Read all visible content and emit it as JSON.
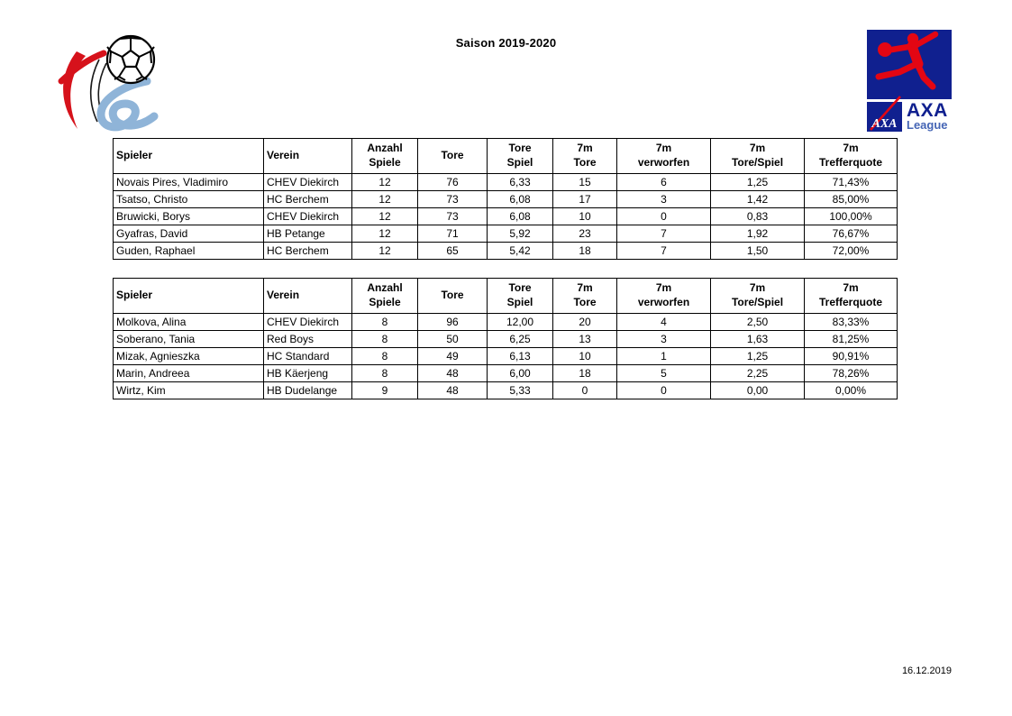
{
  "page": {
    "title": "Saison 2019-2020",
    "footer_date": "16.12.2019",
    "background": "#ffffff"
  },
  "logos": {
    "flh": {
      "name": "flh-handball-federation-logo",
      "colors": {
        "red": "#D6121B",
        "blue": "#8FB4D8",
        "ball_outline": "#000000"
      }
    },
    "axa": {
      "square_text": "AXA",
      "wordmark": "AXA",
      "subtitle": "League",
      "colors": {
        "navy": "#10208F",
        "red": "#E30613",
        "league_blue": "#4565B5"
      }
    }
  },
  "tables": [
    {
      "name": "top-scorers-men",
      "headers": [
        "Spieler",
        "Verein",
        "Anzahl\nSpiele",
        "Tore",
        "Tore\nSpiel",
        "7m\nTore",
        "7m\nverworfen",
        "7m\nTore/Spiel",
        "7m\nTrefferquote"
      ],
      "rows": [
        [
          "Novais Pires, Vladimiro",
          "CHEV Diekirch",
          "12",
          "76",
          "6,33",
          "15",
          "6",
          "1,25",
          "71,43%"
        ],
        [
          "Tsatso, Christo",
          "HC Berchem",
          "12",
          "73",
          "6,08",
          "17",
          "3",
          "1,42",
          "85,00%"
        ],
        [
          "Bruwicki, Borys",
          "CHEV Diekirch",
          "12",
          "73",
          "6,08",
          "10",
          "0",
          "0,83",
          "100,00%"
        ],
        [
          "Gyafras, David",
          "HB Petange",
          "12",
          "71",
          "5,92",
          "23",
          "7",
          "1,92",
          "76,67%"
        ],
        [
          "Guden, Raphael",
          "HC Berchem",
          "12",
          "65",
          "5,42",
          "18",
          "7",
          "1,50",
          "72,00%"
        ]
      ]
    },
    {
      "name": "top-scorers-women",
      "headers": [
        "Spieler",
        "Verein",
        "Anzahl\nSpiele",
        "Tore",
        "Tore\nSpiel",
        "7m\nTore",
        "7m\nverworfen",
        "7m\nTore/Spiel",
        "7m\nTrefferquote"
      ],
      "rows": [
        [
          "Molkova, Alina",
          "CHEV Diekirch",
          "8",
          "96",
          "12,00",
          "20",
          "4",
          "2,50",
          "83,33%"
        ],
        [
          "Soberano, Tania",
          "Red Boys",
          "8",
          "50",
          "6,25",
          "13",
          "3",
          "1,63",
          "81,25%"
        ],
        [
          "Mizak, Agnieszka",
          "HC Standard",
          "8",
          "49",
          "6,13",
          "10",
          "1",
          "1,25",
          "90,91%"
        ],
        [
          "Marin, Andreea",
          "HB Käerjeng",
          "8",
          "48",
          "6,00",
          "18",
          "5",
          "2,25",
          "78,26%"
        ],
        [
          "Wirtz, Kim",
          "HB Dudelange",
          "9",
          "48",
          "5,33",
          "0",
          "0",
          "0,00",
          "0,00%"
        ]
      ]
    }
  ]
}
